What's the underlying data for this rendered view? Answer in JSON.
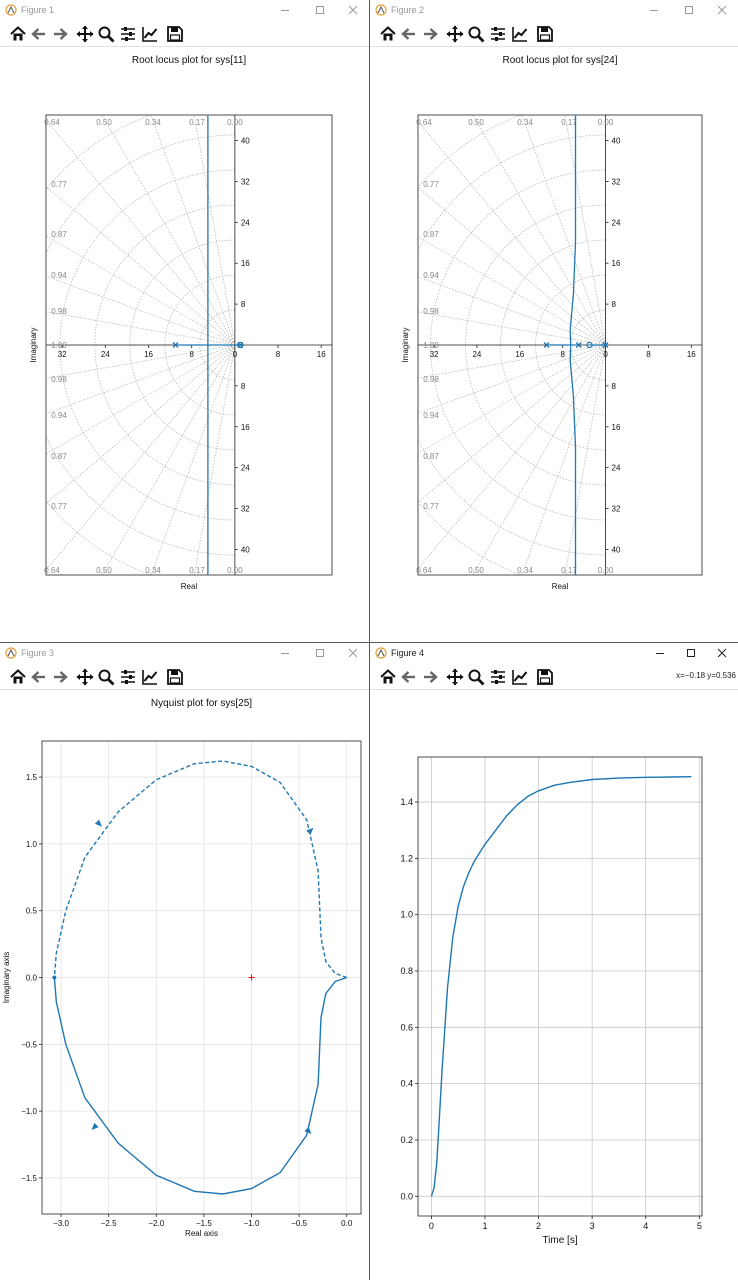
{
  "windows": [
    {
      "title": "Figure 1"
    },
    {
      "title": "Figure 2"
    },
    {
      "title": "Figure 3"
    },
    {
      "title": "Figure 4"
    }
  ],
  "toolbar": {
    "icons": [
      "home-icon",
      "back-arrow-icon",
      "forward-arrow-icon",
      "pan-icon",
      "zoom-icon",
      "configure-subplots-icon",
      "edit-axis-icon",
      "save-icon"
    ]
  },
  "status": {
    "coords": "x=−0.18 y=0.536"
  },
  "colors": {
    "line": "#1f77b4",
    "critical_point": "#ff0000",
    "grid": "#b0b0b0"
  },
  "chart_data": [
    {
      "type": "line",
      "title": "Root locus plot for sys[11]",
      "xlabel": "Real",
      "ylabel": "Imaginary",
      "xlim": [
        -35,
        18
      ],
      "ylim": [
        -45,
        45
      ],
      "x_ticks": [
        "32",
        "24",
        "16",
        "8",
        "0",
        "8",
        "16"
      ],
      "y_ticks": [
        "40",
        "32",
        "24",
        "16",
        "8",
        "0",
        "8",
        "16",
        "24",
        "32",
        "40"
      ],
      "damping_labels": [
        "0.64",
        "0.50",
        "0.34",
        "0.17",
        "0.00",
        "0.77",
        "0.87",
        "0.94",
        "0.98",
        "1.00"
      ],
      "poles": [
        [
          -11,
          0
        ],
        [
          1,
          0
        ]
      ],
      "zeros": [
        [
          1,
          0
        ]
      ],
      "locus": [
        {
          "x": [
            -11,
            1
          ],
          "y": [
            0,
            0
          ]
        },
        {
          "x": [
            -5,
            -5
          ],
          "y": [
            -45,
            45
          ]
        }
      ]
    },
    {
      "type": "line",
      "title": "Root locus plot for sys[24]",
      "xlabel": "Real",
      "ylabel": "Imaginary",
      "xlim": [
        -35,
        18
      ],
      "ylim": [
        -45,
        45
      ],
      "x_ticks": [
        "32",
        "24",
        "16",
        "8",
        "0",
        "8",
        "16"
      ],
      "y_ticks": [
        "40",
        "32",
        "24",
        "16",
        "8",
        "0",
        "8",
        "16",
        "24",
        "32",
        "40"
      ],
      "damping_labels": [
        "0.64",
        "0.50",
        "0.34",
        "0.17",
        "0.00",
        "0.77",
        "0.87",
        "0.94",
        "0.98",
        "1.00"
      ],
      "poles": [
        [
          -11,
          0
        ],
        [
          -5,
          0
        ],
        [
          0,
          0
        ]
      ],
      "zeros": [
        [
          -3,
          0
        ]
      ],
      "locus": [
        {
          "x": [
            -11,
            -5
          ],
          "y": [
            0,
            0
          ]
        },
        {
          "x": [
            -6.5,
            -6.6,
            -6,
            -5.6,
            -5.6
          ],
          "y": [
            0,
            3,
            10,
            20,
            45
          ]
        },
        {
          "x": [
            -6.5,
            -6.6,
            -6,
            -5.6,
            -5.6
          ],
          "y": [
            0,
            -3,
            -10,
            -20,
            -45
          ]
        },
        {
          "x": [
            -3,
            0
          ],
          "y": [
            0,
            0
          ]
        }
      ]
    },
    {
      "type": "line",
      "title": "Nyquist plot for sys[25]",
      "xlabel": "Real axis",
      "ylabel": "Imaginary axis",
      "xlim": [
        -3.2,
        0.15
      ],
      "ylim": [
        -1.77,
        1.77
      ],
      "x_ticks": [
        "−3.0",
        "−2.5",
        "−2.0",
        "−1.5",
        "−1.0",
        "−0.5",
        "0.0"
      ],
      "y_ticks": [
        "1.5",
        "1.0",
        "0.5",
        "0.0",
        "−0.5",
        "−1.0",
        "−1.5"
      ],
      "critical_point": [
        -1,
        0
      ],
      "series": [
        {
          "style": "solid",
          "x": [
            0,
            -0.12,
            -0.22,
            -0.27,
            -0.3,
            -0.42,
            -0.7,
            -1.0,
            -1.3,
            -1.6,
            -2.0,
            -2.4,
            -2.75,
            -2.95,
            -3.05,
            -3.07
          ],
          "y": [
            0,
            -0.03,
            -0.12,
            -0.3,
            -0.8,
            -1.18,
            -1.46,
            -1.58,
            -1.62,
            -1.6,
            -1.48,
            -1.24,
            -0.9,
            -0.5,
            -0.18,
            0
          ]
        },
        {
          "style": "dashed",
          "x": [
            0,
            -0.12,
            -0.22,
            -0.27,
            -0.3,
            -0.42,
            -0.7,
            -1.0,
            -1.3,
            -1.6,
            -2.0,
            -2.4,
            -2.75,
            -2.95,
            -3.05,
            -3.07
          ],
          "y": [
            0,
            0.03,
            0.12,
            0.3,
            0.8,
            1.18,
            1.46,
            1.58,
            1.62,
            1.6,
            1.48,
            1.24,
            0.9,
            0.5,
            0.18,
            0
          ]
        }
      ],
      "arrows": [
        [
          -2.65,
          -1.12
        ],
        [
          -0.4,
          -1.15
        ],
        [
          -2.6,
          1.15
        ],
        [
          -0.38,
          1.1
        ]
      ]
    },
    {
      "type": "line",
      "title": "",
      "xlabel": "Time [s]",
      "ylabel": "",
      "xlim": [
        -0.25,
        5.05
      ],
      "ylim": [
        -0.07,
        1.56
      ],
      "x_ticks": [
        "0",
        "1",
        "2",
        "3",
        "4",
        "5"
      ],
      "y_ticks": [
        "1.4",
        "1.2",
        "1.0",
        "0.8",
        "0.6",
        "0.4",
        "0.2",
        "0.0"
      ],
      "series": [
        {
          "x": [
            0,
            0.05,
            0.1,
            0.15,
            0.2,
            0.3,
            0.4,
            0.5,
            0.6,
            0.7,
            0.8,
            0.9,
            1.0,
            1.2,
            1.4,
            1.6,
            1.8,
            2.0,
            2.3,
            2.6,
            3.0,
            3.5,
            4.0,
            4.5,
            4.85
          ],
          "y": [
            0,
            0.03,
            0.12,
            0.28,
            0.45,
            0.74,
            0.92,
            1.03,
            1.1,
            1.15,
            1.19,
            1.22,
            1.25,
            1.3,
            1.35,
            1.39,
            1.42,
            1.44,
            1.46,
            1.47,
            1.48,
            1.485,
            1.488,
            1.489,
            1.49
          ]
        }
      ]
    }
  ]
}
